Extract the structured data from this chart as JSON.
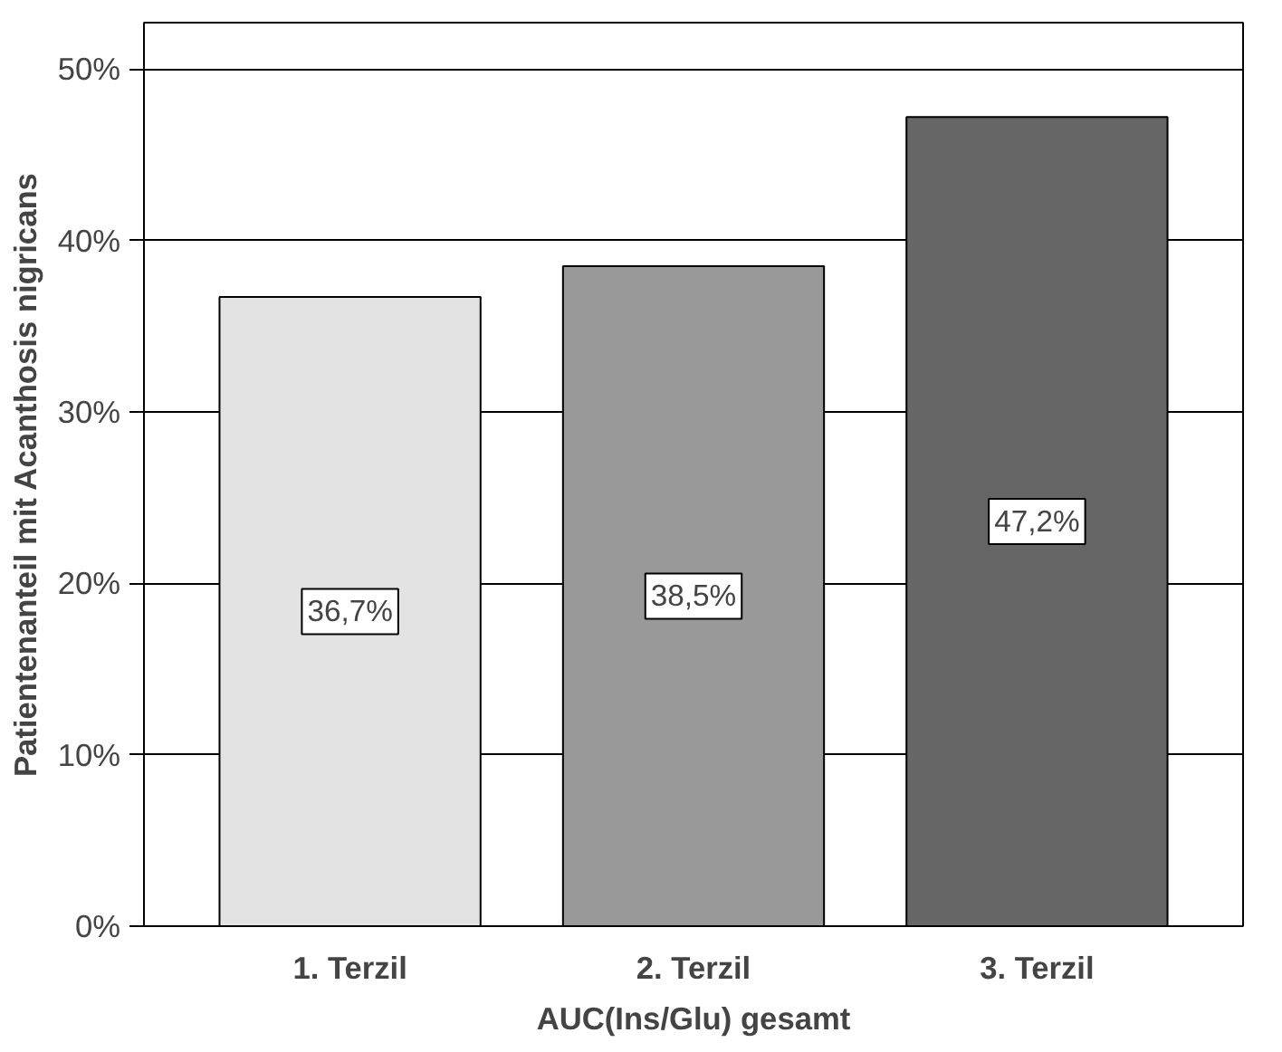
{
  "chart_data": {
    "type": "bar",
    "xlabel": "AUC(Ins/Glu) gesamt",
    "ylabel": "Patientenanteil mit Acanthosis nigricans",
    "categories": [
      "1. Terzil",
      "2. Terzil",
      "3. Terzil"
    ],
    "values": [
      36.7,
      38.5,
      47.2
    ],
    "value_labels": [
      "36,7%",
      "38,5%",
      "47,2%"
    ],
    "colors": [
      "#e3e3e3",
      "#999999",
      "#666666"
    ],
    "ylim": [
      0,
      52.7
    ],
    "yticks": [
      {
        "value": 0,
        "label": "0%"
      },
      {
        "value": 10,
        "label": "10%"
      },
      {
        "value": 20,
        "label": "20%"
      },
      {
        "value": 30,
        "label": "30%"
      },
      {
        "value": 40,
        "label": "40%"
      },
      {
        "value": 50,
        "label": "50%"
      }
    ],
    "grid": "y"
  }
}
